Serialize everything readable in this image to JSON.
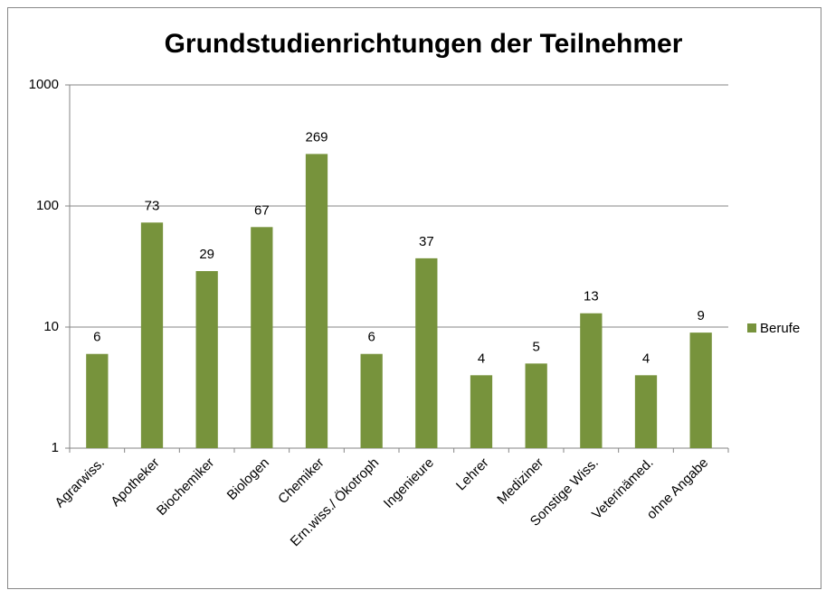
{
  "chart_data": {
    "type": "bar",
    "title": "Grundstudienrichtungen  der Teilnehmer",
    "categories": [
      "Agrarwiss.",
      "Apotheker",
      "Biochemiker",
      "Biologen",
      "Chemiker",
      "Ern.wiss./ Ökotroph",
      "Ingenieure",
      "Lehrer",
      "Mediziner",
      "Sonstige Wiss.",
      "Veterinämed.",
      "ohne Angabe"
    ],
    "series": [
      {
        "name": "Berufe",
        "color": "#77933c",
        "values": [
          6,
          73,
          29,
          67,
          269,
          6,
          37,
          4,
          5,
          13,
          4,
          9
        ]
      }
    ],
    "ylim": [
      1,
      1000
    ],
    "yticks": [
      1,
      10,
      100,
      1000
    ],
    "log_y": true,
    "grid": true,
    "legend": "right"
  }
}
